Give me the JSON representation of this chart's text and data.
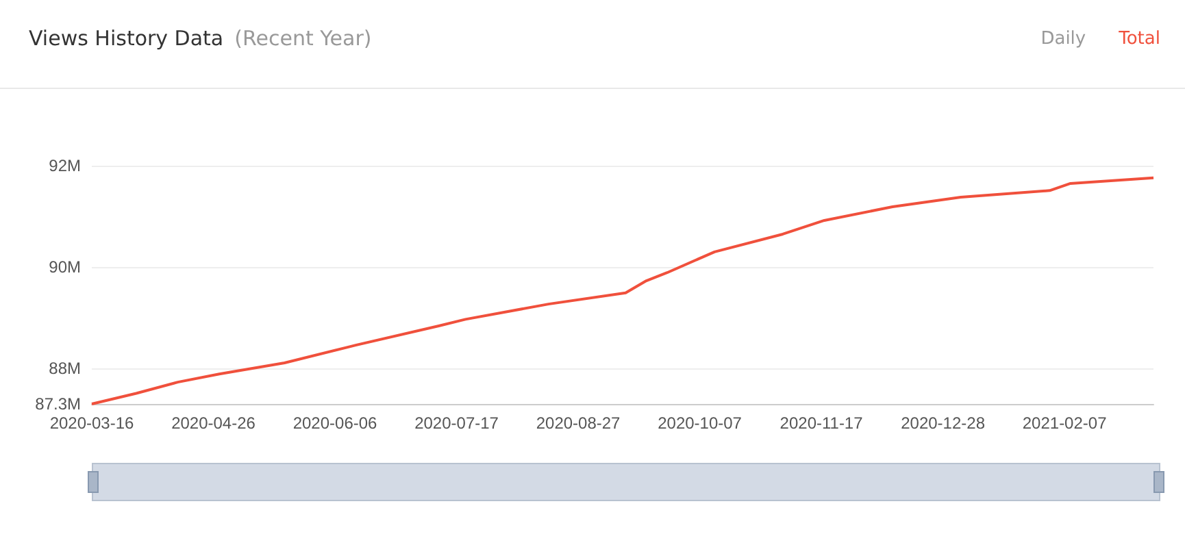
{
  "chart_data": {
    "type": "line",
    "title": "Views History Data",
    "subtitle": "(Recent Year)",
    "annotations": [
      "Daily",
      "Total"
    ],
    "x": [
      "2020-03-16",
      "2020-03-31",
      "2020-04-14",
      "2020-04-28",
      "2020-05-20",
      "2020-06-13",
      "2020-07-11",
      "2020-07-20",
      "2020-08-17",
      "2020-09-12",
      "2020-09-19",
      "2020-09-26",
      "2020-10-12",
      "2020-11-04",
      "2020-11-18",
      "2020-12-11",
      "2021-01-03",
      "2021-02-02",
      "2021-02-09",
      "2021-03-09"
    ],
    "series": [
      {
        "color": "#f0503c",
        "values": [
          87.3,
          87.51,
          87.73,
          87.89,
          88.11,
          88.46,
          88.84,
          88.97,
          89.27,
          89.49,
          89.73,
          89.89,
          90.3,
          90.65,
          90.92,
          91.19,
          91.38,
          91.51,
          91.65,
          91.76
        ]
      }
    ],
    "xlim": [
      "2020-03-16",
      "2021-03-09"
    ],
    "xticks": [
      "2020-03-16",
      "2020-04-26",
      "2020-06-06",
      "2020-07-17",
      "2020-08-27",
      "2020-10-07",
      "2020-11-17",
      "2020-12-28",
      "2021-02-07"
    ],
    "ylim": [
      87.3,
      92
    ],
    "yticks": [
      {
        "value": 87.3,
        "label": "87.3M"
      },
      {
        "value": 88,
        "label": "88M"
      },
      {
        "value": 90,
        "label": "90M"
      },
      {
        "value": 92,
        "label": "92M"
      }
    ],
    "grid": "y",
    "marker": "none",
    "line_style": "solid"
  }
}
